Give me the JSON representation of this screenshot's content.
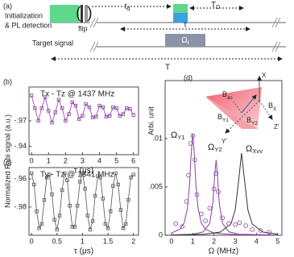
{
  "diagram": {
    "panel": "(a)",
    "init": [
      "Initialization",
      "& PL detection"
    ],
    "flip": "flip",
    "td": {
      "main": "t",
      "sub": "d"
    },
    "TD": {
      "main": "T",
      "sub": "D"
    },
    "target": "Target signal",
    "tau": "τ",
    "omega": {
      "main": "Ω",
      "sub": "t"
    },
    "period": "T"
  },
  "shared_ylabel": "Normalized Rabi signal (a.u.)",
  "chart_data": [
    {
      "type": "line",
      "panel": "(b)",
      "annotation": "Tx - Tz @ 1437 MHz",
      "xlabel": "τ (μs)",
      "color": "#8a3fa0",
      "marker": "square",
      "x": [
        0,
        0.2,
        0.4,
        0.6,
        0.8,
        1,
        1.2,
        1.4,
        1.6,
        1.8,
        2,
        2.2,
        2.4,
        2.6,
        2.8,
        3,
        3.2,
        3.4,
        3.6,
        3.8,
        4,
        4.2,
        4.4,
        4.6,
        4.8,
        5,
        5.2,
        5.4,
        5.6,
        5.8,
        6
      ],
      "values": [
        -1.0,
        -0.985,
        -0.97,
        -0.985,
        -0.998,
        -0.982,
        -0.968,
        -0.98,
        -0.995,
        -0.985,
        -0.97,
        -0.978,
        -0.992,
        -0.988,
        -0.972,
        -0.976,
        -0.99,
        -0.986,
        -0.974,
        -0.975,
        -0.988,
        -0.986,
        -0.975,
        -0.976,
        -0.986,
        -0.985,
        -0.976,
        -0.978,
        -0.985,
        -0.984,
        -0.977
      ],
      "xlim": [
        -0.15,
        6.3
      ],
      "xticks": [
        0,
        1,
        2,
        3,
        4,
        5,
        6
      ],
      "ylim": [
        -0.93,
        -1.01
      ],
      "yticks": [
        {
          "value": -0.97,
          "label": "-.97"
        },
        {
          "value": -0.94,
          "label": "-.94"
        }
      ]
    },
    {
      "type": "line",
      "panel": "(c)",
      "annotation": "Ty - Tz @ 1341 MHz",
      "xlabel": "τ (μs)",
      "color": "#555555",
      "marker": "square",
      "x": [
        0,
        0.05,
        0.1,
        0.15,
        0.2,
        0.25,
        0.3,
        0.35,
        0.4,
        0.45,
        0.5,
        0.55,
        0.6,
        0.65,
        0.7,
        0.75,
        0.8,
        0.85,
        0.9,
        0.95,
        1,
        1.05,
        1.1,
        1.15,
        1.2,
        1.25,
        1.3,
        1.35,
        1.4,
        1.45,
        1.5,
        1.55,
        1.6,
        1.65,
        1.7,
        1.75,
        1.8,
        1.85,
        1.9,
        1.95,
        2
      ],
      "values": [
        -0.956,
        -0.964,
        -0.983,
        -0.995,
        -0.992,
        -0.975,
        -0.959,
        -0.957,
        -0.971,
        -0.989,
        -0.996,
        -0.986,
        -0.968,
        -0.956,
        -0.961,
        -0.979,
        -0.994,
        -0.994,
        -0.979,
        -0.962,
        -0.956,
        -0.967,
        -0.986,
        -0.996,
        -0.99,
        -0.972,
        -0.958,
        -0.959,
        -0.974,
        -0.992,
        -0.995,
        -0.983,
        -0.965,
        -0.956,
        -0.964,
        -0.982,
        -0.995,
        -0.992,
        -0.975,
        -0.959,
        -0.957
      ],
      "xlim": [
        -0.05,
        2.1
      ],
      "xticks": [
        0,
        0.5,
        1,
        1.5,
        2
      ],
      "ylim": [
        -1.0,
        -0.952
      ],
      "yticks": [
        {
          "value": -0.96,
          "label": "-.96"
        },
        {
          "value": -0.98,
          "label": "-.98"
        }
      ]
    },
    {
      "type": "spectrum",
      "panel": "(d)",
      "ylabel": "Arbi. unit",
      "xlabel": "Ω (MHz)",
      "xlim": [
        -0.3,
        5.2
      ],
      "xticks": [
        0,
        1,
        2,
        3,
        4,
        5
      ],
      "ylim": [
        0,
        0.016
      ],
      "yticks": [
        0,
        {
          "value": 0.005,
          "label": ".005"
        },
        {
          "value": 0.01,
          "label": ".01"
        }
      ],
      "series": [
        {
          "color": "#8a3fa0",
          "x": [
            0,
            0.4,
            0.6,
            0.75,
            0.85,
            0.92,
            1.0,
            1.08,
            1.15,
            1.25,
            1.4,
            1.6,
            2.0,
            3.0,
            5.0
          ],
          "values": [
            0.00023,
            0.00062,
            0.00129,
            0.00278,
            0.00525,
            0.00818,
            0.0105,
            0.00818,
            0.00525,
            0.00278,
            0.00129,
            0.00062,
            0.00023,
            6e-05,
            1e-05
          ]
        },
        {
          "color": "#8a3fa0",
          "x": [
            0,
            1,
            1.5,
            1.8,
            1.95,
            2.03,
            2.1,
            2.17,
            2.25,
            2.4,
            2.7,
            3.2,
            5
          ],
          "values": [
            3e-05,
            0.00011,
            0.00035,
            0.00123,
            0.00335,
            0.00605,
            0.0078,
            0.00605,
            0.00335,
            0.00123,
            0.00035,
            0.00011,
            2e-05
          ]
        },
        {
          "color": "#333333",
          "x": [
            0,
            1.5,
            2.3,
            2.8,
            3.0,
            3.15,
            3.3,
            3.45,
            3.6,
            3.8,
            4.3,
            5
          ],
          "values": [
            3e-05,
            0.0001,
            0.00033,
            0.00117,
            0.00262,
            0.00544,
            0.0085,
            0.00544,
            0.00262,
            0.00117,
            0.00033,
            0.00012
          ]
        }
      ],
      "points": {
        "color": "#8a3fa0",
        "x": [
          0.2,
          0.5,
          0.7,
          0.8,
          0.9,
          1.0,
          1.1,
          1.2,
          1.4,
          1.6,
          1.8,
          2.0,
          2.1,
          2.2,
          2.4,
          2.7,
          3.0,
          3.2,
          3.5,
          3.8,
          4.2,
          4.6
        ],
        "values": [
          0.0012,
          0.0009,
          0.0035,
          0.0062,
          0.0095,
          0.0103,
          0.0078,
          0.0042,
          0.0022,
          0.0015,
          0.0028,
          0.0048,
          0.0064,
          0.0045,
          0.0018,
          0.0012,
          0.0011,
          0.0013,
          0.001,
          0.0006,
          0.0005,
          0.0003
        ]
      },
      "peak_labels": [
        {
          "main": "Ω",
          "sub": "Y1"
        },
        {
          "main": "Ω",
          "sub": "Y2"
        },
        {
          "main": "Ω",
          "sub": "Xvv"
        }
      ],
      "inset": {
        "axes": [
          "X",
          "Y'",
          "Z'"
        ],
        "vectors": [
          {
            "main": "B",
            "sub": "ac"
          },
          {
            "main": "B",
            "sub": "X"
          },
          {
            "main": "B",
            "sub": "Y1"
          },
          {
            "main": "B",
            "sub": "Y2"
          }
        ]
      }
    }
  ]
}
